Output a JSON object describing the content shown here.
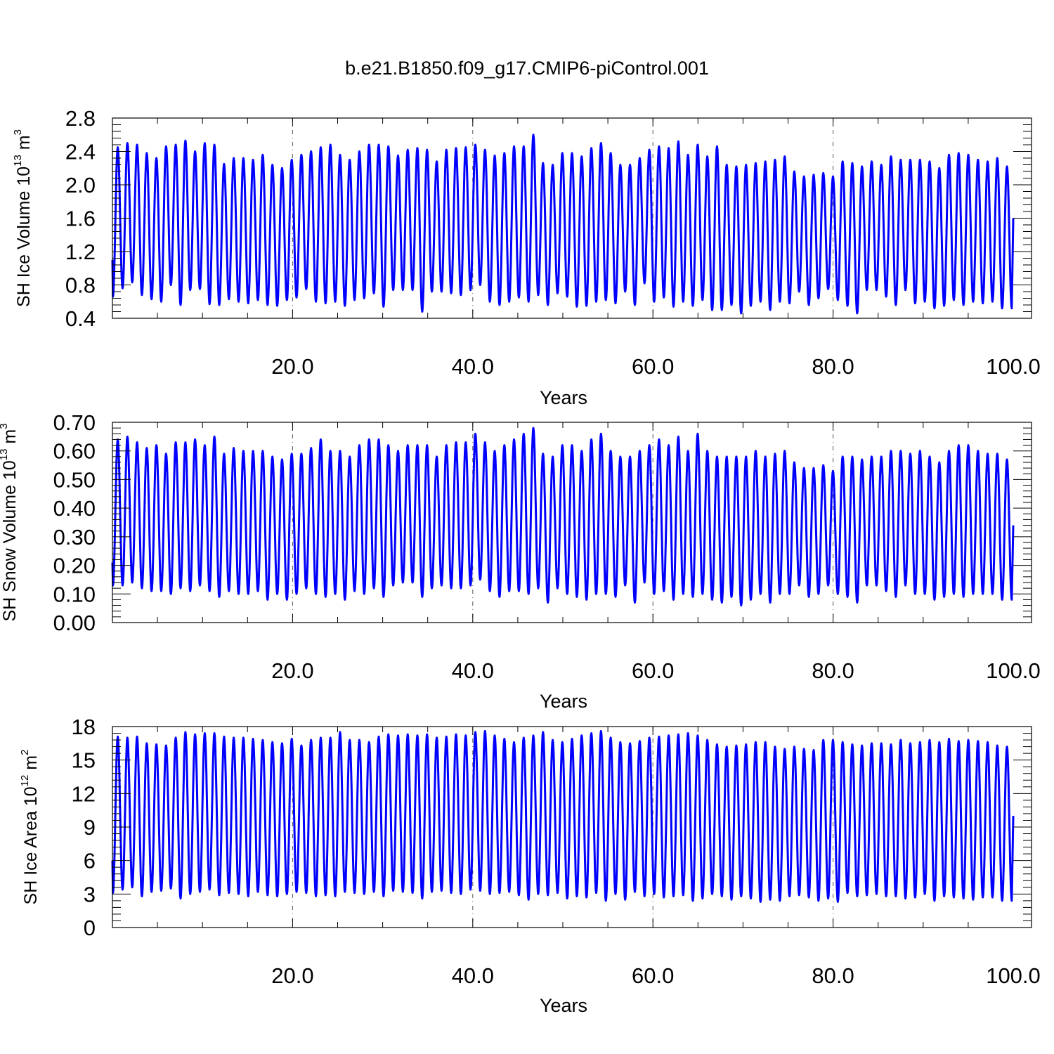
{
  "title": "b.e21.B1850.f09_g17.CMIP6-piControl.001",
  "colors": {
    "line": "#0000ff",
    "axis": "#000000",
    "grid": "#555555"
  },
  "chart_data": [
    {
      "type": "line",
      "title": "b.e21.B1850.f09_g17.CMIP6-piControl.001",
      "xlabel": "Years",
      "ylabel": {
        "text": "SH Ice Volume 10",
        "exp": "13",
        "unit": " m",
        "unit_exp": "3"
      },
      "xlim": [
        0,
        100
      ],
      "ylim": [
        0.4,
        2.8
      ],
      "xticks": [
        20,
        40,
        60,
        80,
        100
      ],
      "xtick_labels": [
        "20.0",
        "40.0",
        "60.0",
        "80.0",
        "100.0"
      ],
      "yticks": [
        0.4,
        0.8,
        1.2,
        1.6,
        2.0,
        2.4,
        2.8
      ],
      "ytick_labels": [
        "0.4",
        "0.8",
        "1.2",
        "1.6",
        "2.0",
        "2.4",
        "2.8"
      ],
      "grid": "vertical dashed at labeled x ticks",
      "series": [
        {
          "start_value": 1.1,
          "end_value": 1.6,
          "annual_max": [
            2.45,
            2.5,
            2.48,
            2.38,
            2.32,
            2.46,
            2.48,
            2.53,
            2.4,
            2.5,
            2.48,
            2.25,
            2.32,
            2.32,
            2.3,
            2.36,
            2.24,
            2.2,
            2.3,
            2.36,
            2.4,
            2.45,
            2.48,
            2.36,
            2.3,
            2.4,
            2.48,
            2.48,
            2.46,
            2.35,
            2.42,
            2.44,
            2.42,
            2.28,
            2.42,
            2.44,
            2.45,
            2.48,
            2.42,
            2.35,
            2.38,
            2.46,
            2.46,
            2.6,
            2.26,
            2.24,
            2.38,
            2.38,
            2.34,
            2.44,
            2.5,
            2.38,
            2.24,
            2.24,
            2.32,
            2.42,
            2.46,
            2.44,
            2.52,
            2.36,
            2.48,
            2.34,
            2.46,
            2.24,
            2.22,
            2.24,
            2.26,
            2.28,
            2.3,
            2.34,
            2.16,
            2.1,
            2.12,
            2.14,
            2.1,
            2.28,
            2.26,
            2.22,
            2.28,
            2.24,
            2.34,
            2.3,
            2.3,
            2.3,
            2.28,
            2.2,
            2.36,
            2.38,
            2.36,
            2.3,
            2.28,
            2.32,
            2.22
          ],
          "annual_min": [
            0.66,
            0.76,
            0.83,
            0.68,
            0.63,
            0.6,
            0.8,
            0.56,
            0.74,
            0.75,
            0.57,
            0.56,
            0.63,
            0.6,
            0.58,
            0.62,
            0.56,
            0.55,
            0.62,
            0.65,
            0.75,
            0.6,
            0.58,
            0.6,
            0.55,
            0.62,
            0.64,
            0.7,
            0.54,
            0.74,
            0.74,
            0.74,
            0.48,
            0.72,
            0.72,
            0.7,
            0.68,
            0.74,
            0.8,
            0.6,
            0.56,
            0.6,
            0.65,
            0.6,
            0.68,
            0.56,
            0.7,
            0.66,
            0.54,
            0.55,
            0.6,
            0.62,
            0.58,
            0.72,
            0.56,
            0.82,
            0.6,
            0.65,
            0.54,
            0.6,
            0.55,
            0.62,
            0.5,
            0.5,
            0.56,
            0.46,
            0.55,
            0.6,
            0.5,
            0.6,
            0.58,
            0.72,
            0.56,
            0.64,
            0.75,
            0.62,
            0.55,
            0.46,
            0.74,
            0.74,
            0.66,
            0.56,
            0.74,
            0.58,
            0.6,
            0.52,
            0.55,
            0.62,
            0.56,
            0.6,
            0.58,
            0.6,
            0.52
          ]
        }
      ]
    },
    {
      "type": "line",
      "xlabel": "Years",
      "ylabel": {
        "text": "SH Snow Volume 10",
        "exp": "13",
        "unit": " m",
        "unit_exp": "3"
      },
      "xlim": [
        0,
        100
      ],
      "ylim": [
        0.0,
        0.7
      ],
      "xticks": [
        20,
        40,
        60,
        80,
        100
      ],
      "xtick_labels": [
        "20.0",
        "40.0",
        "60.0",
        "80.0",
        "100.0"
      ],
      "yticks": [
        0.0,
        0.1,
        0.2,
        0.3,
        0.4,
        0.5,
        0.6,
        0.7
      ],
      "ytick_labels": [
        "0.00",
        "0.10",
        "0.20",
        "0.30",
        "0.40",
        "0.50",
        "0.60",
        "0.70"
      ],
      "grid": "vertical dashed at labeled x ticks",
      "series": [
        {
          "start_value": 0.21,
          "end_value": 0.34,
          "annual_max": [
            0.64,
            0.65,
            0.63,
            0.61,
            0.62,
            0.59,
            0.63,
            0.63,
            0.64,
            0.62,
            0.65,
            0.59,
            0.61,
            0.6,
            0.6,
            0.6,
            0.58,
            0.57,
            0.59,
            0.59,
            0.61,
            0.64,
            0.6,
            0.6,
            0.58,
            0.62,
            0.64,
            0.64,
            0.62,
            0.6,
            0.62,
            0.62,
            0.62,
            0.58,
            0.62,
            0.63,
            0.63,
            0.66,
            0.63,
            0.6,
            0.62,
            0.64,
            0.66,
            0.68,
            0.59,
            0.58,
            0.62,
            0.62,
            0.6,
            0.64,
            0.66,
            0.6,
            0.58,
            0.58,
            0.6,
            0.62,
            0.64,
            0.62,
            0.65,
            0.6,
            0.66,
            0.6,
            0.58,
            0.58,
            0.58,
            0.58,
            0.6,
            0.58,
            0.59,
            0.6,
            0.56,
            0.54,
            0.54,
            0.55,
            0.53,
            0.58,
            0.58,
            0.57,
            0.58,
            0.58,
            0.6,
            0.6,
            0.59,
            0.6,
            0.58,
            0.56,
            0.6,
            0.62,
            0.62,
            0.6,
            0.59,
            0.59,
            0.57
          ],
          "annual_min": [
            0.13,
            0.13,
            0.14,
            0.12,
            0.11,
            0.11,
            0.1,
            0.12,
            0.11,
            0.13,
            0.11,
            0.09,
            0.11,
            0.1,
            0.1,
            0.11,
            0.08,
            0.1,
            0.08,
            0.1,
            0.12,
            0.1,
            0.09,
            0.1,
            0.08,
            0.11,
            0.1,
            0.12,
            0.09,
            0.13,
            0.14,
            0.14,
            0.09,
            0.12,
            0.13,
            0.12,
            0.12,
            0.13,
            0.15,
            0.11,
            0.09,
            0.11,
            0.11,
            0.1,
            0.12,
            0.07,
            0.12,
            0.1,
            0.09,
            0.08,
            0.1,
            0.1,
            0.09,
            0.13,
            0.07,
            0.14,
            0.1,
            0.11,
            0.08,
            0.1,
            0.09,
            0.1,
            0.08,
            0.07,
            0.09,
            0.06,
            0.08,
            0.1,
            0.07,
            0.1,
            0.1,
            0.13,
            0.09,
            0.1,
            0.13,
            0.1,
            0.09,
            0.07,
            0.13,
            0.13,
            0.11,
            0.09,
            0.13,
            0.1,
            0.1,
            0.08,
            0.09,
            0.1,
            0.09,
            0.1,
            0.1,
            0.1,
            0.08
          ]
        }
      ]
    },
    {
      "type": "line",
      "xlabel": "Years",
      "ylabel": {
        "text": "SH Ice Area 10",
        "exp": "12",
        "unit": " m",
        "unit_exp": "2"
      },
      "xlim": [
        0,
        100
      ],
      "ylim": [
        0,
        18
      ],
      "xticks": [
        20,
        40,
        60,
        80,
        100
      ],
      "xtick_labels": [
        "20.0",
        "40.0",
        "60.0",
        "80.0",
        "100.0"
      ],
      "yticks": [
        0,
        3,
        6,
        9,
        12,
        15,
        18
      ],
      "ytick_labels": [
        "0",
        "3",
        "6",
        "9",
        "12",
        "15",
        "18"
      ],
      "grid": "vertical dashed at labeled x ticks",
      "series": [
        {
          "start_value": 6.0,
          "end_value": 10.0,
          "annual_max": [
            17.1,
            17.0,
            17.1,
            16.5,
            16.4,
            16.3,
            17.0,
            17.5,
            17.3,
            17.4,
            17.4,
            17.1,
            17.0,
            17.0,
            16.9,
            16.8,
            16.6,
            16.5,
            16.9,
            16.3,
            16.8,
            17.0,
            17.0,
            17.5,
            16.8,
            16.8,
            16.6,
            17.1,
            17.3,
            17.2,
            17.3,
            17.2,
            17.3,
            17.0,
            17.1,
            17.3,
            17.2,
            17.5,
            17.6,
            17.2,
            16.9,
            16.6,
            17.0,
            17.2,
            17.5,
            16.8,
            16.6,
            16.9,
            17.2,
            17.4,
            17.6,
            17.0,
            16.6,
            16.5,
            16.7,
            17.0,
            17.1,
            17.2,
            17.3,
            17.4,
            17.2,
            16.8,
            16.4,
            16.2,
            16.3,
            16.4,
            16.6,
            16.6,
            16.2,
            16.0,
            16.2,
            16.0,
            15.9,
            16.8,
            16.8,
            16.6,
            16.4,
            16.3,
            16.5,
            16.5,
            16.4,
            16.8,
            16.5,
            16.6,
            16.8,
            16.6,
            16.9,
            16.7,
            16.8,
            16.7,
            16.6,
            16.3,
            16.2
          ],
          "annual_min": [
            3.1,
            3.4,
            3.6,
            2.8,
            3.2,
            3.3,
            3.5,
            2.6,
            3.0,
            3.2,
            3.4,
            2.9,
            3.1,
            3.0,
            2.8,
            3.2,
            2.9,
            2.8,
            3.0,
            3.2,
            3.1,
            2.8,
            2.9,
            2.8,
            3.2,
            3.1,
            3.0,
            3.2,
            2.8,
            3.3,
            3.2,
            3.1,
            2.6,
            3.2,
            3.3,
            3.1,
            3.0,
            3.4,
            3.3,
            3.0,
            3.1,
            3.2,
            2.9,
            2.5,
            3.0,
            2.9,
            3.1,
            2.6,
            2.8,
            2.7,
            3.1,
            2.4,
            3.0,
            2.5,
            3.2,
            2.8,
            3.0,
            2.7,
            2.8,
            2.9,
            2.4,
            2.6,
            3.0,
            2.8,
            2.5,
            2.8,
            2.6,
            2.3,
            2.5,
            2.4,
            2.8,
            2.9,
            2.7,
            2.4,
            2.6,
            2.3,
            3.1,
            2.8,
            2.9,
            3.0,
            2.8,
            2.8,
            2.6,
            2.7,
            3.0,
            2.4,
            2.8,
            2.7,
            2.6,
            2.5,
            2.7,
            2.7,
            2.4
          ]
        }
      ]
    }
  ]
}
